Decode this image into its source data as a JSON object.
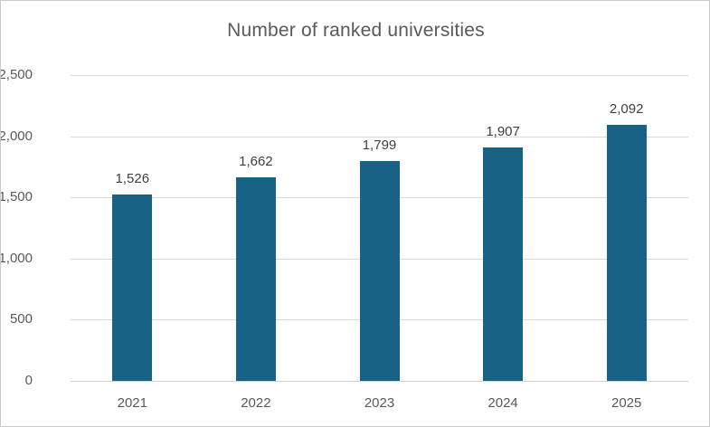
{
  "chart_data": {
    "type": "bar",
    "title": "Number of ranked universities",
    "categories": [
      "2021",
      "2022",
      "2023",
      "2024",
      "2025"
    ],
    "values": [
      1526,
      1662,
      1799,
      1907,
      2092
    ],
    "value_labels": [
      "1,526",
      "1,662",
      "1,799",
      "1,907",
      "2,092"
    ],
    "xlabel": "",
    "ylabel": "",
    "ylim": [
      0,
      2500
    ],
    "y_tick_values": [
      2500,
      2000,
      1500,
      1000,
      500,
      0
    ],
    "y_tick_labels": [
      "2,500",
      "2,000",
      "1,500",
      "1,000",
      "500",
      "0"
    ],
    "grid": "horizontal",
    "legend": "none",
    "colors": {
      "bar": "#186385",
      "title": "#595959",
      "axis_labels": "#595959",
      "data_labels": "#404040",
      "gridline": "#d9d9d9",
      "axis_line": "#d0d0d0",
      "border": "#c9c9c9",
      "background": "#ffffff"
    }
  }
}
